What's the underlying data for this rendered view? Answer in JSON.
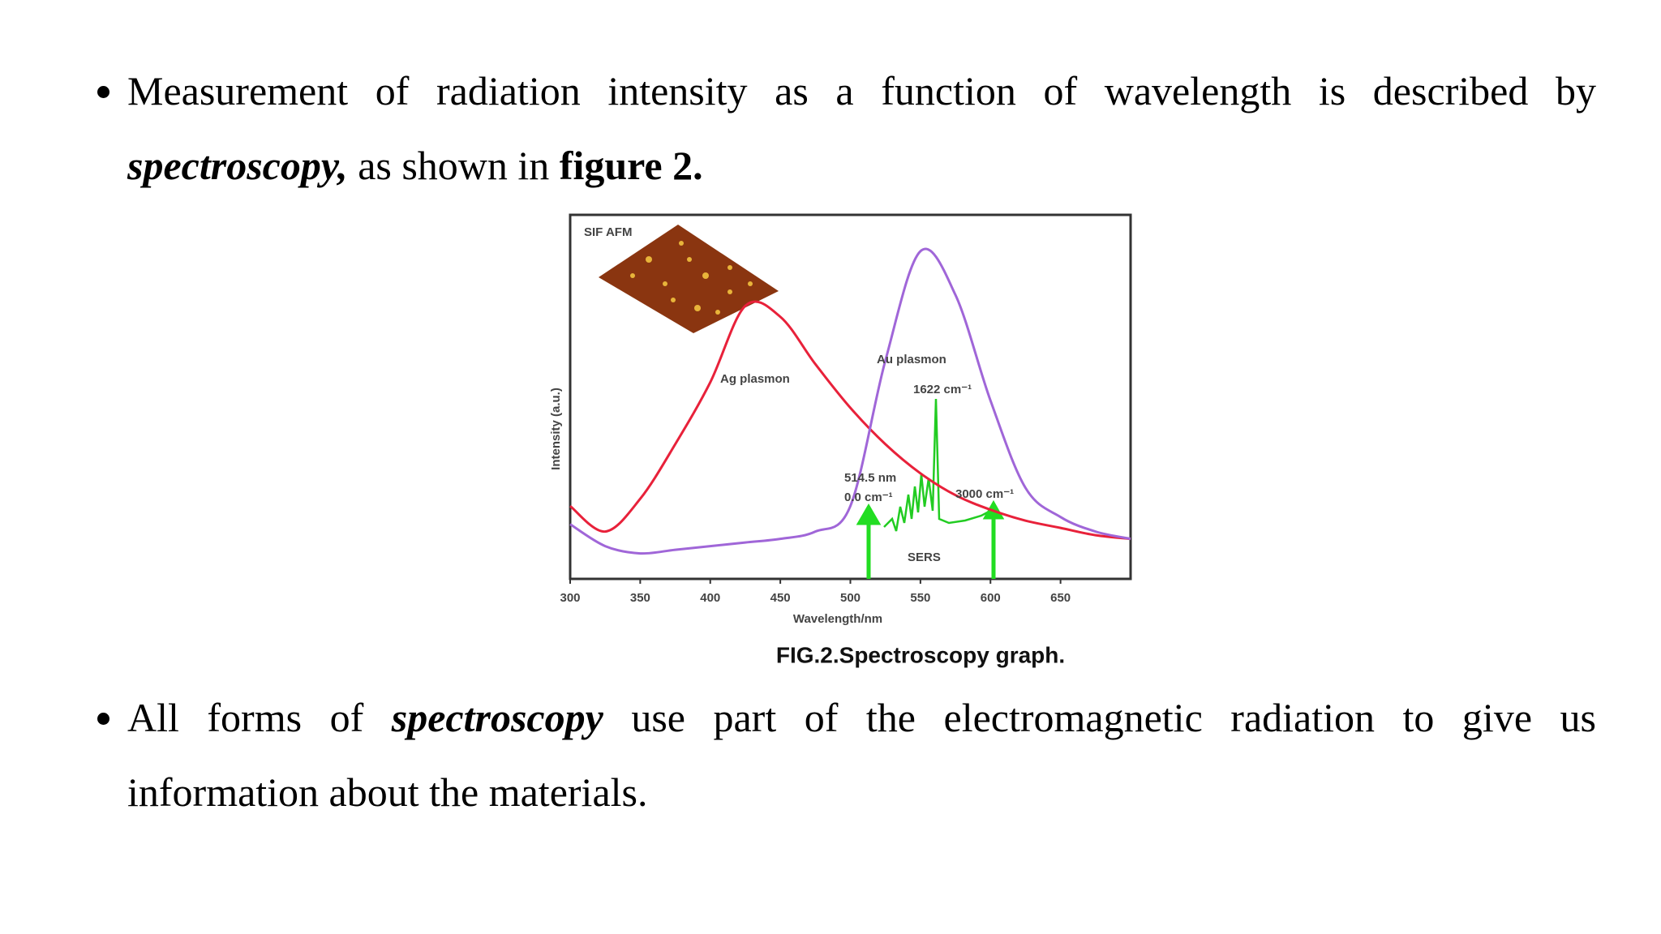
{
  "bullets": [
    {
      "lines": [
        {
          "runs": [
            {
              "text": "Measurement of radiation intensity as a function of wavelength is described by"
            }
          ]
        },
        {
          "runs": [
            {
              "text": "spectroscopy,",
              "style": "bold-italic"
            },
            {
              "text": " as shown in "
            },
            {
              "text": "figure 2.",
              "style": "bold"
            }
          ]
        }
      ]
    },
    {
      "lines": [
        {
          "runs": [
            {
              "text": "All forms of "
            },
            {
              "text": "spectroscopy",
              "style": "bold-italic"
            },
            {
              "text": " use part of the electromagnetic radiation to give us"
            }
          ]
        },
        {
          "runs": [
            {
              "text": "information about the materials."
            }
          ]
        }
      ]
    }
  ],
  "figure": {
    "caption": "FIG.2.Spectroscopy graph."
  },
  "chart_data": {
    "type": "line",
    "xlabel": "Wavelength/nm",
    "ylabel": "Intensity (a.u.)",
    "x": [
      300,
      325,
      350,
      375,
      400,
      425,
      450,
      475,
      500,
      525,
      550,
      575,
      600,
      625,
      650,
      675,
      700
    ],
    "series": [
      {
        "name": "Ag plasmon",
        "color": "#e8213a",
        "values": [
          20,
          13,
          22,
          37,
          54,
          75,
          72,
          59,
          47,
          37,
          29,
          23,
          19,
          16,
          14,
          12,
          11
        ]
      },
      {
        "name": "Au plasmon",
        "color": "#a066d8",
        "values": [
          15,
          9,
          7,
          8,
          9,
          10,
          11,
          13,
          20,
          60,
          90,
          78,
          49,
          25,
          17,
          13,
          11
        ]
      }
    ],
    "xlim": [
      300,
      700
    ],
    "ylim": [
      0,
      100
    ],
    "xticks": [
      300,
      350,
      400,
      450,
      500,
      550,
      600,
      650
    ],
    "annotations": [
      "SIF AFM",
      "1622 cm⁻¹",
      "514.5 nm",
      "0.0 cm⁻¹",
      "3000 cm⁻¹",
      "SERS"
    ]
  }
}
